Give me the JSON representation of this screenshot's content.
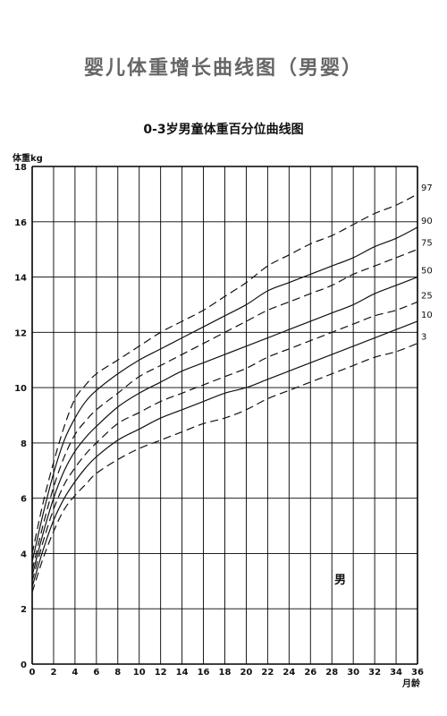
{
  "page": {
    "title": "婴儿体重增长曲线图（男婴）"
  },
  "chart_data": {
    "type": "line",
    "title": "0-3岁男童体重百分位曲线图",
    "ylabel": "体重kg",
    "xlabel": "月龄",
    "annotation": "男",
    "xlim": [
      0,
      36
    ],
    "ylim": [
      0,
      18
    ],
    "x_ticks": [
      0,
      2,
      4,
      6,
      8,
      10,
      12,
      14,
      16,
      18,
      20,
      22,
      24,
      26,
      28,
      30,
      32,
      34,
      36
    ],
    "y_ticks": [
      0,
      2,
      4,
      6,
      8,
      10,
      12,
      14,
      16,
      18
    ],
    "x_grid_step": 2,
    "y_grid_step": 2,
    "grid": true,
    "x": [
      0,
      1,
      2,
      3,
      4,
      5,
      6,
      8,
      10,
      12,
      14,
      16,
      18,
      20,
      22,
      24,
      26,
      28,
      30,
      32,
      34,
      36
    ],
    "series": [
      {
        "name": "97",
        "style": "dashed",
        "values": [
          4.0,
          5.8,
          7.3,
          8.6,
          9.6,
          10.1,
          10.5,
          11.0,
          11.5,
          12.0,
          12.4,
          12.8,
          13.3,
          13.8,
          14.4,
          14.8,
          15.2,
          15.5,
          15.9,
          16.3,
          16.6,
          17.0
        ]
      },
      {
        "name": "90",
        "style": "solid",
        "values": [
          3.7,
          5.4,
          6.9,
          8.1,
          8.9,
          9.5,
          9.9,
          10.5,
          11.0,
          11.4,
          11.8,
          12.2,
          12.6,
          13.0,
          13.5,
          13.8,
          14.1,
          14.4,
          14.7,
          15.1,
          15.4,
          15.8
        ]
      },
      {
        "name": "75",
        "style": "dashed",
        "values": [
          3.4,
          5.0,
          6.4,
          7.5,
          8.3,
          8.8,
          9.2,
          9.8,
          10.4,
          10.8,
          11.2,
          11.6,
          12.0,
          12.4,
          12.8,
          13.1,
          13.4,
          13.7,
          14.1,
          14.4,
          14.7,
          15.0
        ]
      },
      {
        "name": "50",
        "style": "solid",
        "values": [
          3.2,
          4.7,
          6.0,
          7.0,
          7.7,
          8.2,
          8.6,
          9.3,
          9.8,
          10.2,
          10.6,
          10.9,
          11.2,
          11.5,
          11.8,
          12.1,
          12.4,
          12.7,
          13.0,
          13.4,
          13.7,
          14.0
        ]
      },
      {
        "name": "25",
        "style": "dashed",
        "values": [
          3.0,
          4.4,
          5.6,
          6.5,
          7.1,
          7.6,
          8.0,
          8.7,
          9.1,
          9.5,
          9.8,
          10.1,
          10.4,
          10.7,
          11.1,
          11.4,
          11.7,
          12.0,
          12.3,
          12.6,
          12.8,
          13.1
        ]
      },
      {
        "name": "10",
        "style": "solid",
        "values": [
          2.8,
          4.1,
          5.2,
          6.0,
          6.6,
          7.1,
          7.5,
          8.1,
          8.5,
          8.9,
          9.2,
          9.5,
          9.8,
          10.0,
          10.3,
          10.6,
          10.9,
          11.2,
          11.5,
          11.8,
          12.1,
          12.4
        ]
      },
      {
        "name": "3",
        "style": "dashed",
        "values": [
          2.6,
          3.8,
          4.8,
          5.6,
          6.1,
          6.5,
          6.9,
          7.4,
          7.8,
          8.1,
          8.4,
          8.7,
          8.9,
          9.2,
          9.6,
          9.9,
          10.2,
          10.5,
          10.8,
          11.1,
          11.3,
          11.6
        ]
      }
    ]
  }
}
